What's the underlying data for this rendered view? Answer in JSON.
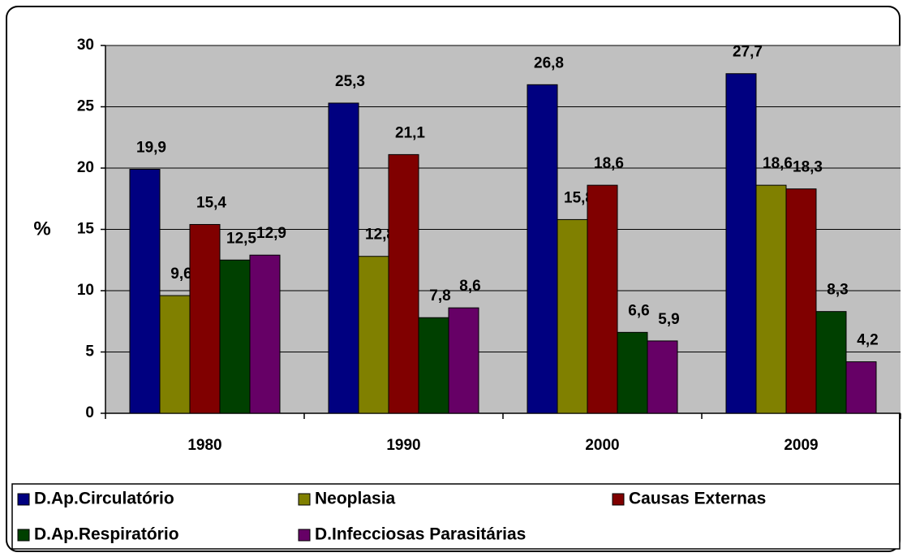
{
  "chart_data": {
    "type": "bar",
    "y_label": "%",
    "categories": [
      "1980",
      "1990",
      "2000",
      "2009"
    ],
    "ylim": [
      0,
      30
    ],
    "yticks": [
      0,
      5,
      10,
      15,
      20,
      25,
      30
    ],
    "grid": true,
    "legend": "bottom",
    "series": [
      {
        "name": "D.Ap.Circulatório",
        "color": "#000080",
        "values": [
          19.9,
          25.3,
          26.8,
          27.7
        ],
        "value_labels": [
          "19,9",
          "25,3",
          "26,8",
          "27,7"
        ]
      },
      {
        "name": "Neoplasia",
        "color": "#808000",
        "values": [
          9.6,
          12.8,
          15.8,
          18.6
        ],
        "value_labels": [
          "9,6",
          "12,8",
          "15,8",
          "18,6"
        ]
      },
      {
        "name": "Causas Externas",
        "color": "#800000",
        "values": [
          15.4,
          21.1,
          18.6,
          18.3
        ],
        "value_labels": [
          "15,4",
          "21,1",
          "18,6",
          "18,3"
        ]
      },
      {
        "name": "D.Ap.Respiratório",
        "color": "#004000",
        "values": [
          12.5,
          7.8,
          6.6,
          8.3
        ],
        "value_labels": [
          "12,5",
          "7,8",
          "6,6",
          "8,3"
        ]
      },
      {
        "name": "D.Infecciosas Parasitárias",
        "color": "#660066",
        "values": [
          12.9,
          8.6,
          5.9,
          4.2
        ],
        "value_labels": [
          "12,9",
          "8,6",
          "5,9",
          "4,2"
        ]
      }
    ]
  }
}
